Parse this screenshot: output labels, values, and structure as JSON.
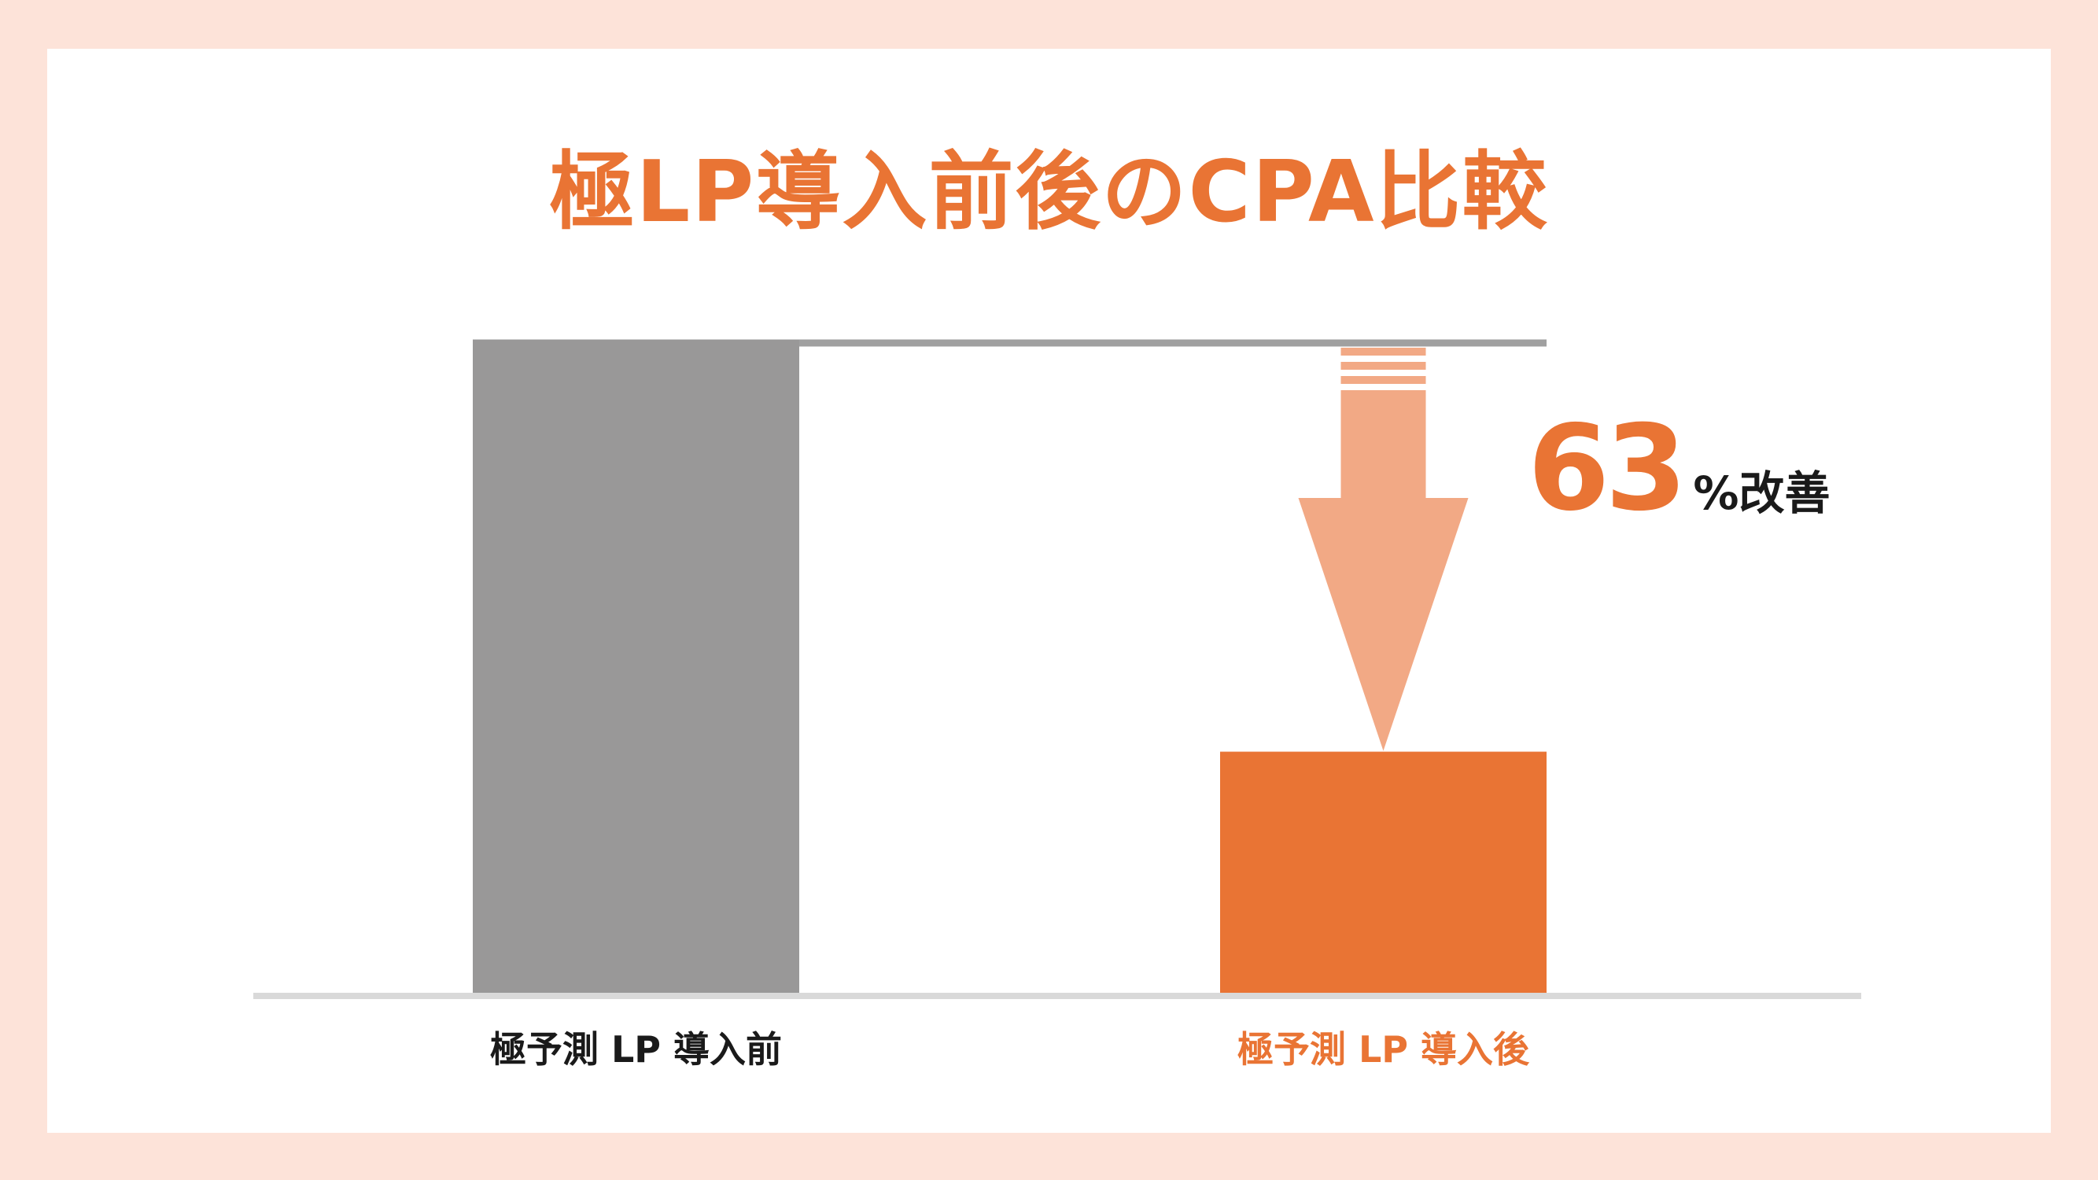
{
  "colors": {
    "background": "#fde3d9",
    "card": "#ffffff",
    "accent": "#e97434",
    "arrow": "#f2a985",
    "before_bar": "#999898",
    "reference_line": "#a0a0a0",
    "baseline": "#d9d9d9",
    "label_dark": "#1a1a1a"
  },
  "chart_data": {
    "type": "bar",
    "title": "極LP導入前後のCPA比較",
    "categories": [
      "極予測 LP 導入前",
      "極予測 LP 導入後"
    ],
    "values": [
      100,
      37
    ],
    "ylim": [
      0,
      100
    ],
    "grid": false,
    "annotation": {
      "number": "63",
      "suffix": "%改善",
      "from": 0,
      "to": 1
    }
  }
}
